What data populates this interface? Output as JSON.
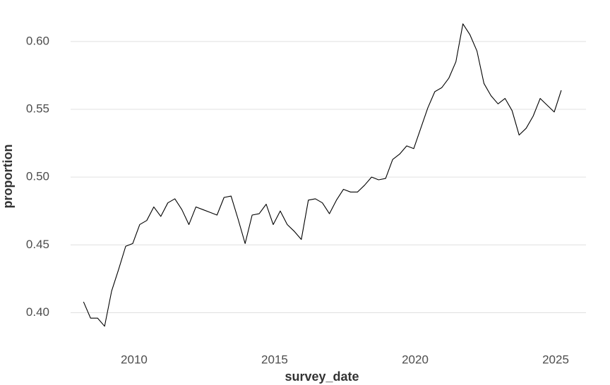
{
  "chart_data": {
    "type": "line",
    "x_label": "survey_date",
    "y_label": "proportion",
    "x": [
      2008.2,
      2008.45,
      2008.7,
      2008.95,
      2009.2,
      2009.45,
      2009.7,
      2009.95,
      2010.2,
      2010.45,
      2010.7,
      2010.95,
      2011.2,
      2011.45,
      2011.7,
      2011.95,
      2012.2,
      2012.45,
      2012.7,
      2012.95,
      2013.2,
      2013.45,
      2013.7,
      2013.95,
      2014.2,
      2014.45,
      2014.7,
      2014.95,
      2015.2,
      2015.45,
      2015.7,
      2015.95,
      2016.2,
      2016.45,
      2016.7,
      2016.95,
      2017.2,
      2017.45,
      2017.7,
      2017.95,
      2018.2,
      2018.45,
      2018.7,
      2018.95,
      2019.2,
      2019.45,
      2019.7,
      2019.95,
      2020.2,
      2020.45,
      2020.7,
      2020.95,
      2021.2,
      2021.45,
      2021.7,
      2021.95,
      2022.2,
      2022.45,
      2022.7,
      2022.95,
      2023.2,
      2023.45,
      2023.7,
      2023.95,
      2024.2,
      2024.45,
      2024.7,
      2024.95,
      2025.2
    ],
    "series": [
      {
        "color": "#000000",
        "values": [
          0.408,
          0.396,
          0.396,
          0.39,
          0.416,
          0.432,
          0.449,
          0.451,
          0.465,
          0.468,
          0.478,
          0.471,
          0.481,
          0.484,
          0.476,
          0.465,
          0.478,
          0.476,
          0.474,
          0.472,
          0.485,
          0.486,
          0.469,
          0.451,
          0.472,
          0.473,
          0.48,
          0.465,
          0.475,
          0.465,
          0.46,
          0.454,
          0.483,
          0.484,
          0.481,
          0.473,
          0.483,
          0.491,
          0.489,
          0.489,
          0.494,
          0.5,
          0.498,
          0.499,
          0.513,
          0.517,
          0.523,
          0.521,
          0.536,
          0.551,
          0.563,
          0.566,
          0.573,
          0.585,
          0.613,
          0.605,
          0.593,
          0.569,
          0.56,
          0.554,
          0.558,
          0.549,
          0.531,
          0.536,
          0.545,
          0.558,
          0.553,
          0.548,
          0.564
        ]
      }
    ],
    "xlim": [
      2007.74,
      2026.08
    ],
    "ylim": [
      0.381,
      0.615
    ],
    "xticks": [
      2010,
      2015,
      2020,
      2025
    ],
    "yticks": [
      {
        "value": 0.4,
        "label": "0.40"
      },
      0.45,
      {
        "value": 0.5,
        "label": "0.50"
      },
      0.55,
      {
        "value": 0.6,
        "label": "0.60"
      }
    ],
    "grid": "y"
  }
}
